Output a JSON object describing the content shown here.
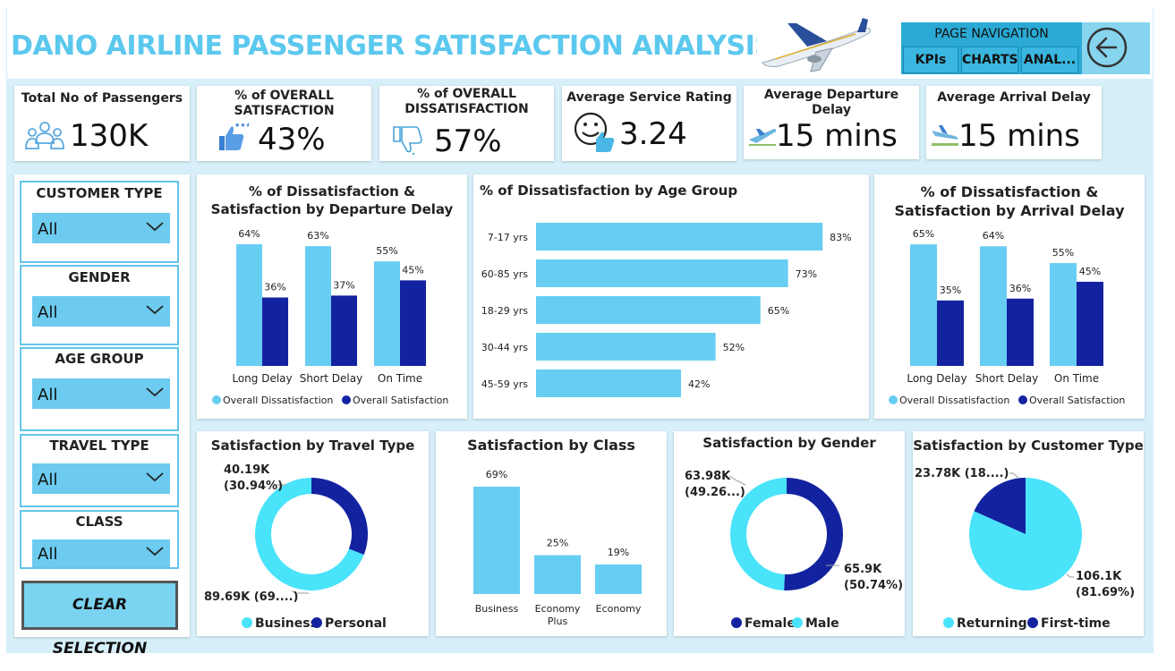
{
  "title": "DANO AIRLINE PASSENGER SATISFACTION ANALYSIS",
  "colors": {
    "light": "#68cdf2",
    "dark": "#1323a0",
    "cyan": "#49e3fa",
    "title": "#5bc8ee"
  },
  "nav": {
    "title": "PAGE NAVIGATION",
    "btn1": "KPIs",
    "btn2": "CHARTS",
    "btn3": "ANAL...",
    "back_icon": "arrow-left-circle-icon"
  },
  "kpis": {
    "passengers": {
      "title": "Total No of Passengers",
      "value": "130K",
      "icon": "people-icon"
    },
    "satisfaction": {
      "title": "% of OVERALL SATISFACTION",
      "value": "43%",
      "icon": "thumbs-up-icon"
    },
    "dissatisfaction": {
      "title": "% of OVERALL DISSATISFACTION",
      "value": "57%",
      "icon": "thumbs-down-icon"
    },
    "rating": {
      "title": "Average Service Rating",
      "value": "3.24",
      "icon": "smiley-thumb-icon"
    },
    "dep_delay": {
      "title": "Average Departure Delay",
      "value": "15 mins",
      "icon": "departure-icon"
    },
    "arr_delay": {
      "title": "Average Arrival Delay",
      "value": "15 mins",
      "icon": "arrival-icon"
    }
  },
  "slicers": {
    "customer_type": {
      "label": "CUSTOMER TYPE",
      "value": "All"
    },
    "gender": {
      "label": "GENDER",
      "value": "All"
    },
    "age_group": {
      "label": "AGE GROUP",
      "value": "All"
    },
    "travel_type": {
      "label": "TRAVEL TYPE",
      "value": "All"
    },
    "class": {
      "label": "CLASS",
      "value": "All"
    }
  },
  "clear_label": "CLEAR SELECTION",
  "chart_data": [
    {
      "id": "dep",
      "type": "bar",
      "title": "% of Dissatisfaction & Satisfaction by Departure Delay",
      "categories": [
        "Long Delay",
        "Short Delay",
        "On Time"
      ],
      "series": [
        {
          "name": "Overall Dissatisfaction",
          "values": [
            64,
            63,
            55
          ],
          "labels": [
            "64%",
            "63%",
            "55%"
          ]
        },
        {
          "name": "Overall Satisfaction",
          "values": [
            36,
            37,
            45
          ],
          "labels": [
            "36%",
            "37%",
            "45%"
          ]
        }
      ],
      "legend": "bottom",
      "grid": false
    },
    {
      "id": "age",
      "type": "bar",
      "orientation": "horizontal",
      "title": "% of Dissatisfaction by Age Group",
      "categories": [
        "7-17 yrs",
        "60-85 yrs",
        "18-29 yrs",
        "30-44 yrs",
        "45-59 yrs"
      ],
      "values": [
        83,
        73,
        65,
        52,
        42
      ],
      "labels": [
        "83%",
        "73%",
        "65%",
        "52%",
        "42%"
      ],
      "grid": false
    },
    {
      "id": "arr",
      "type": "bar",
      "title": "% of Dissatisfaction & Satisfaction by Arrival Delay",
      "categories": [
        "Long Delay",
        "Short Delay",
        "On Time"
      ],
      "series": [
        {
          "name": "Overall Dissatisfaction",
          "values": [
            65,
            64,
            55
          ],
          "labels": [
            "65%",
            "64%",
            "55%"
          ]
        },
        {
          "name": "Overall Satisfaction",
          "values": [
            35,
            36,
            45
          ],
          "labels": [
            "35%",
            "36%",
            "45%"
          ]
        }
      ],
      "legend": "bottom",
      "grid": false
    },
    {
      "id": "travel",
      "type": "pie",
      "donut": true,
      "title": "Satisfaction by Travel Type",
      "slices": [
        {
          "name": "Business",
          "value": 89.69,
          "label1": "89.69K (69....)",
          "label2": ""
        },
        {
          "name": "Personal",
          "value": 40.19,
          "label1": "40.19K",
          "label2": "(30.94%)"
        }
      ],
      "legend": "bottom"
    },
    {
      "id": "class",
      "type": "bar",
      "title": "Satisfaction by Class",
      "categories": [
        "Business",
        "Economy Plus",
        "Economy"
      ],
      "values": [
        69,
        25,
        19
      ],
      "labels": [
        "69%",
        "25%",
        "19%"
      ],
      "grid": false
    },
    {
      "id": "gender",
      "type": "pie",
      "donut": true,
      "title": "Satisfaction by Gender",
      "slices": [
        {
          "name": "Female",
          "value": 65.9,
          "label1": "65.9K",
          "label2": "(50.74%)"
        },
        {
          "name": "Male",
          "value": 63.98,
          "label1": "63.98K",
          "label2": "(49.26...)"
        }
      ],
      "legend": "bottom"
    },
    {
      "id": "customer",
      "type": "pie",
      "donut": false,
      "title": "Satisfaction by Customer Type",
      "slices": [
        {
          "name": "Returning",
          "value": 106.1,
          "label1": "106.1K",
          "label2": "(81.69%)"
        },
        {
          "name": "First-time",
          "value": 23.78,
          "label1": "23.78K (18....)",
          "label2": ""
        }
      ],
      "legend": "bottom"
    }
  ]
}
